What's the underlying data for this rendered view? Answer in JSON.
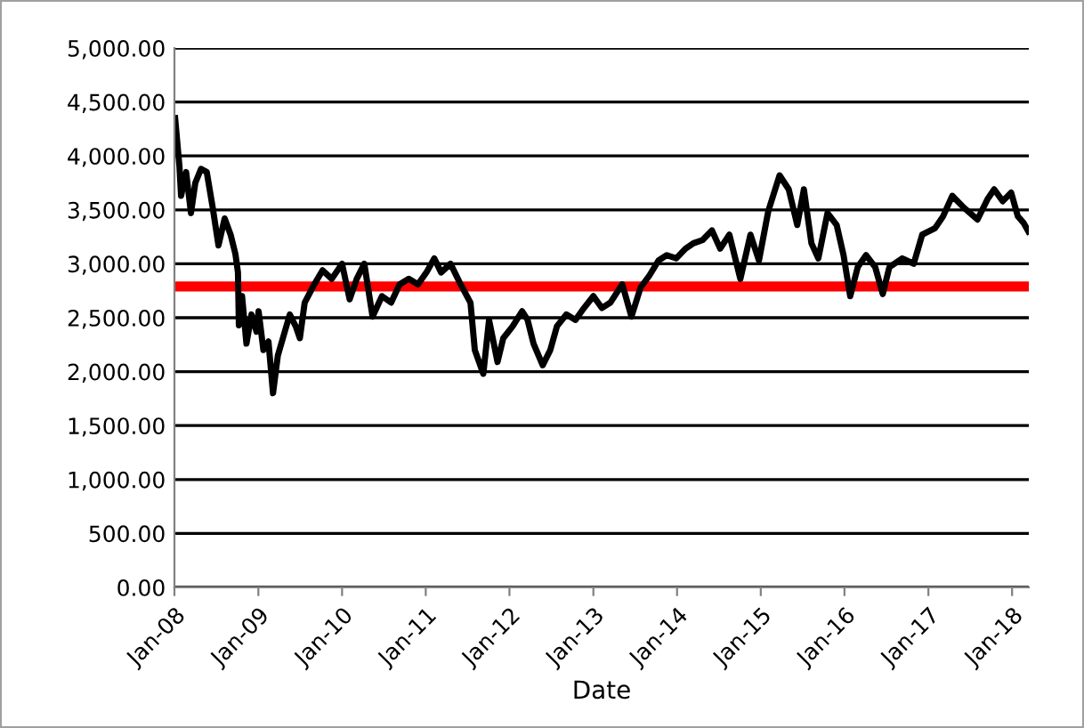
{
  "chart_data": {
    "type": "line",
    "xlabel": "Date",
    "grid": "y",
    "legend": false,
    "marker": "none",
    "line_style": "solid",
    "xlim": [
      "2008-01-01",
      "2018-03-15"
    ],
    "xticks": [
      {
        "value": "2008-01-01",
        "label": "Jan-08"
      },
      {
        "value": "2009-01-01",
        "label": "Jan-09"
      },
      {
        "value": "2010-01-01",
        "label": "Jan-10"
      },
      {
        "value": "2011-01-01",
        "label": "Jan-11"
      },
      {
        "value": "2012-01-01",
        "label": "Jan-12"
      },
      {
        "value": "2013-01-01",
        "label": "Jan-13"
      },
      {
        "value": "2014-01-01",
        "label": "Jan-14"
      },
      {
        "value": "2015-01-01",
        "label": "Jan-15"
      },
      {
        "value": "2016-01-01",
        "label": "Jan-16"
      },
      {
        "value": "2017-01-01",
        "label": "Jan-17"
      },
      {
        "value": "2018-01-01",
        "label": "Jan-18"
      }
    ],
    "ylim": [
      0,
      5000
    ],
    "yticks": [
      {
        "value": 0,
        "label": "0.00"
      },
      {
        "value": 500,
        "label": "500.00"
      },
      {
        "value": 1000,
        "label": "1,000.00"
      },
      {
        "value": 1500,
        "label": "1,500.00"
      },
      {
        "value": 2000,
        "label": "2,000.00"
      },
      {
        "value": 2500,
        "label": "2,500.00"
      },
      {
        "value": 3000,
        "label": "3,000.00"
      },
      {
        "value": 3500,
        "label": "3,500.00"
      },
      {
        "value": 4000,
        "label": "4,000.00"
      },
      {
        "value": 4500,
        "label": "4,500.00"
      },
      {
        "value": 5000,
        "label": "5,000.00"
      }
    ],
    "ref_lines": [
      {
        "axis": "y",
        "value": 2790,
        "color": "#ff0000",
        "line_style": "solid"
      }
    ],
    "x": [
      "2008-01-04",
      "2008-01-23",
      "2008-01-30",
      "2008-02-21",
      "2008-03-13",
      "2008-04-01",
      "2008-04-26",
      "2008-05-21",
      "2008-06-16",
      "2008-07-11",
      "2008-08-07",
      "2008-09-02",
      "2008-09-23",
      "2008-10-04",
      "2008-10-08",
      "2008-10-22",
      "2008-11-10",
      "2008-12-02",
      "2008-12-24",
      "2009-01-02",
      "2009-01-23",
      "2009-02-14",
      "2009-03-06",
      "2009-03-27",
      "2009-04-22",
      "2009-05-18",
      "2009-06-13",
      "2009-07-01",
      "2009-07-22",
      "2009-09-02",
      "2009-10-08",
      "2009-11-17",
      "2010-01-01",
      "2010-02-03",
      "2010-03-06",
      "2010-04-08",
      "2010-05-14",
      "2010-06-24",
      "2010-08-03",
      "2010-09-09",
      "2010-10-19",
      "2010-11-28",
      "2011-01-04",
      "2011-02-07",
      "2011-03-09",
      "2011-04-19",
      "2011-06-02",
      "2011-07-15",
      "2011-08-03",
      "2011-09-09",
      "2011-10-04",
      "2011-11-10",
      "2011-12-05",
      "2012-01-15",
      "2012-02-25",
      "2012-03-20",
      "2012-04-15",
      "2012-05-25",
      "2012-06-27",
      "2012-07-26",
      "2012-09-05",
      "2012-10-15",
      "2012-11-21",
      "2013-01-01",
      "2013-02-07",
      "2013-03-16",
      "2013-05-07",
      "2013-06-16",
      "2013-07-26",
      "2013-09-02",
      "2013-10-12",
      "2013-11-17",
      "2013-12-28",
      "2014-02-07",
      "2014-03-13",
      "2014-04-22",
      "2014-06-02",
      "2014-07-08",
      "2014-08-17",
      "2014-10-04",
      "2014-11-17",
      "2014-12-24",
      "2015-02-03",
      "2015-03-24",
      "2015-05-03",
      "2015-06-09",
      "2015-07-08",
      "2015-08-10",
      "2015-09-09",
      "2015-10-19",
      "2015-11-28",
      "2015-12-28",
      "2016-01-26",
      "2016-02-28",
      "2016-04-04",
      "2016-05-14",
      "2016-06-16",
      "2016-07-15",
      "2016-09-09",
      "2016-10-29",
      "2016-12-05",
      "2017-01-30",
      "2017-03-06",
      "2017-04-15",
      "2017-06-05",
      "2017-08-03",
      "2017-09-16",
      "2017-10-15",
      "2017-11-21",
      "2017-12-28",
      "2018-01-26",
      "2018-02-20",
      "2018-03-13"
    ],
    "series": [
      {
        "color": "#000000",
        "values": [
          4350,
          3900,
          3630,
          3850,
          3470,
          3750,
          3880,
          3850,
          3520,
          3170,
          3420,
          3270,
          3090,
          2920,
          2430,
          2700,
          2260,
          2530,
          2370,
          2560,
          2200,
          2280,
          1800,
          2150,
          2340,
          2530,
          2420,
          2310,
          2640,
          2810,
          2940,
          2860,
          3000,
          2670,
          2860,
          3000,
          2510,
          2700,
          2640,
          2810,
          2860,
          2810,
          2920,
          3050,
          2920,
          3000,
          2810,
          2640,
          2200,
          1980,
          2480,
          2090,
          2310,
          2420,
          2560,
          2480,
          2260,
          2060,
          2200,
          2420,
          2530,
          2480,
          2590,
          2700,
          2590,
          2640,
          2810,
          2510,
          2780,
          2890,
          3030,
          3080,
          3050,
          3140,
          3190,
          3220,
          3310,
          3140,
          3270,
          2860,
          3270,
          3030,
          3490,
          3820,
          3690,
          3360,
          3690,
          3190,
          3050,
          3470,
          3360,
          3080,
          2700,
          2970,
          3080,
          2970,
          2720,
          2970,
          3050,
          3000,
          3270,
          3330,
          3440,
          3630,
          3520,
          3410,
          3600,
          3690,
          3580,
          3660,
          3440,
          3380,
          3300
        ]
      }
    ]
  }
}
